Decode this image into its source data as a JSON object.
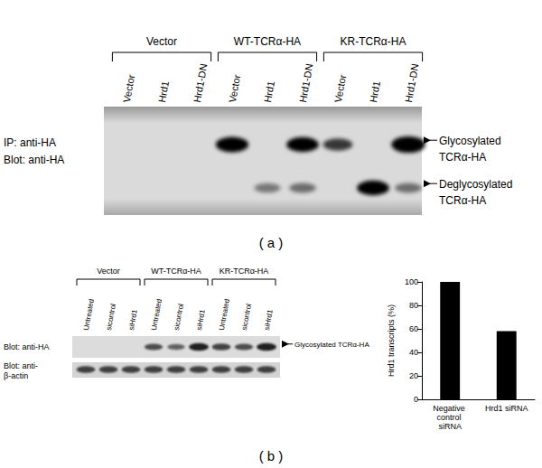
{
  "panels": [
    {
      "caption": "( a )",
      "groups": [
        {
          "title": "Vector",
          "lanes": [
            "Vector",
            "Hrd1",
            "Hrd1-DN"
          ]
        },
        {
          "title": "WT-TCRα-HA",
          "lanes": [
            "Vector",
            "Hrd1",
            "Hrd1-DN"
          ]
        },
        {
          "title": "KR-TCRα-HA",
          "lanes": [
            "Vector",
            "Hrd1",
            "Hrd1-DN"
          ]
        }
      ],
      "blots": [
        {
          "label_lines": [
            "IP: anti-HA",
            "Blot: anti-HA"
          ],
          "bands": [
            {
              "label_lines": [
                "Glycosylated",
                "TCRα-HA"
              ],
              "intensity": [
                0,
                0,
                0,
                0.9,
                0,
                0.85,
                0.6,
                0,
                1
              ]
            },
            {
              "label_lines": [
                "Deglycosylated",
                "TCRα-HA"
              ],
              "intensity": [
                0,
                0,
                0,
                0,
                0.3,
                0.35,
                0,
                0.85,
                0.35
              ]
            }
          ]
        }
      ]
    },
    {
      "caption": "( b )",
      "groups": [
        {
          "title": "Vector",
          "lanes": [
            "Untreated",
            "sicontrol",
            "siHrd1"
          ]
        },
        {
          "title": "WT-TCRα-HA",
          "lanes": [
            "Untreated",
            "sicontrol",
            "siHrd1"
          ]
        },
        {
          "title": "KR-TCRα-HA",
          "lanes": [
            "Untreated",
            "sicontrol",
            "siHrd1"
          ]
        }
      ],
      "blots": [
        {
          "label_lines": [
            "Blot: anti-HA"
          ],
          "bands": [
            {
              "label_lines": [
                "Glycosylated TCRα-HA"
              ],
              "intensity": [
                0,
                0,
                0,
                0.5,
                0.4,
                0.7,
                0.55,
                0.5,
                0.7
              ]
            }
          ]
        },
        {
          "label_lines": [
            "Blot: anti-",
            "β-actin"
          ],
          "bands": [
            {
              "intensity": [
                0.55,
                0.55,
                0.55,
                0.55,
                0.55,
                0.55,
                0.55,
                0.55,
                0.55
              ]
            }
          ]
        }
      ]
    }
  ],
  "chart_data": {
    "type": "bar",
    "categories": [
      "Negative control siRNA",
      "Hrd1 siRNA"
    ],
    "values": [
      100,
      58
    ],
    "color": "#000000",
    "ylabel": "Hrd1 transcripts (%)",
    "ylim": [
      0,
      100
    ],
    "yticks": [
      0,
      20,
      40,
      60,
      80,
      100
    ],
    "grid": false
  }
}
